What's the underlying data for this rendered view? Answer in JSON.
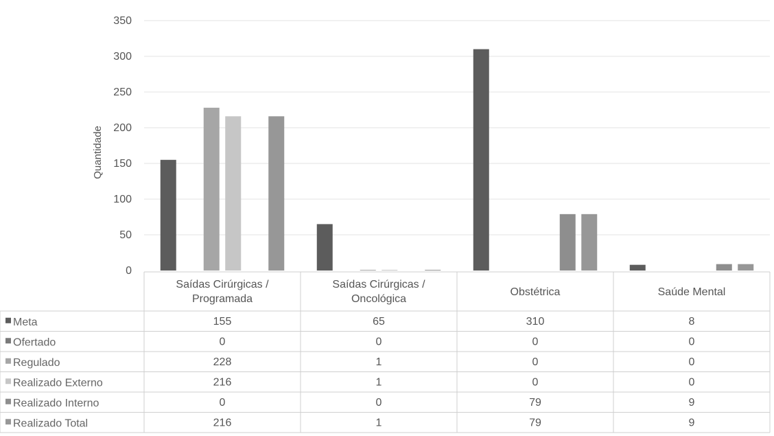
{
  "chart_data": {
    "type": "bar",
    "ylabel": "Quantidade",
    "ylim": [
      0,
      350
    ],
    "yticks": [
      0,
      50,
      100,
      150,
      200,
      250,
      300,
      350
    ],
    "grid": true,
    "legend_placement": "data-table-left",
    "categories": [
      [
        "Saídas Cirúrgicas /",
        "Programada"
      ],
      [
        "Saídas Cirúrgicas /",
        "Oncológica"
      ],
      [
        "Obstétrica"
      ],
      [
        "Saúde Mental"
      ]
    ],
    "series": [
      {
        "name": "Meta",
        "color": "#5c5c5c",
        "values": [
          155,
          65,
          310,
          8
        ]
      },
      {
        "name": "Ofertado",
        "color": "#7a7a7a",
        "values": [
          0,
          0,
          0,
          0
        ]
      },
      {
        "name": "Regulado",
        "color": "#a6a6a6",
        "values": [
          228,
          1,
          0,
          0
        ]
      },
      {
        "name": "Realizado Externo",
        "color": "#c6c6c6",
        "values": [
          216,
          1,
          0,
          0
        ]
      },
      {
        "name": "Realizado Interno",
        "color": "#8e8e8e",
        "values": [
          0,
          0,
          79,
          9
        ]
      },
      {
        "name": "Realizado Total",
        "color": "#979797",
        "values": [
          216,
          1,
          79,
          9
        ]
      }
    ]
  }
}
